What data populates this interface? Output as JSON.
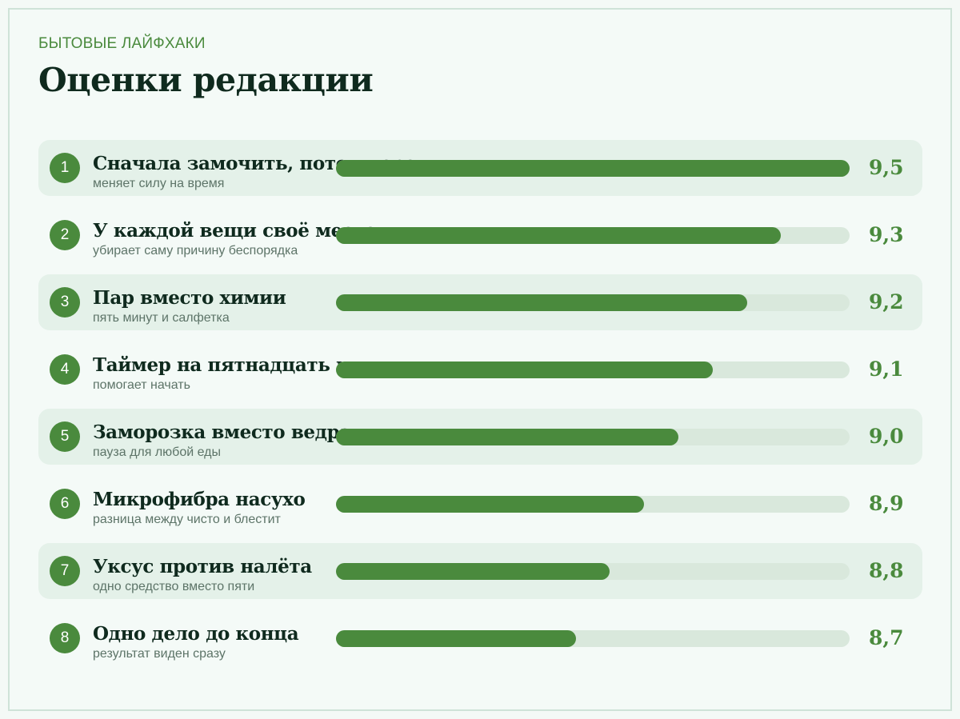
{
  "header": {
    "kicker": "БЫТОВЫЕ ЛАЙФХАКИ",
    "title": "Оценки редакции"
  },
  "chart_data": {
    "type": "bar",
    "orientation": "horizontal",
    "title": "Оценки редакции",
    "categories": [
      "Сначала замочить, потом тереть",
      "У каждой вещи своё место",
      "Пар вместо химии",
      "Таймер на пятнадцать минут",
      "Заморозка вместо ведра",
      "Микрофибра насухо",
      "Уксус против налёта",
      "Одно дело до конца"
    ],
    "values": [
      9.5,
      9.3,
      9.2,
      9.1,
      9.0,
      8.9,
      8.8,
      8.7
    ],
    "value_labels": [
      "9,5",
      "9,3",
      "9,2",
      "9,1",
      "9,0",
      "8,9",
      "8,8",
      "8,7"
    ],
    "scale_min": 8.0,
    "scale_max": 9.5,
    "grid": false,
    "colors": {
      "bar": "#4a8a3d",
      "track": "#d9e8dc",
      "row_shade": "#e4f1e9"
    },
    "items": [
      {
        "rank": "1",
        "name": "Сначала замочить, потом тереть",
        "sub": "меняет силу на время",
        "value": 9.5,
        "label": "9,5"
      },
      {
        "rank": "2",
        "name": "У каждой вещи своё место",
        "sub": "убирает саму причину беспорядка",
        "value": 9.3,
        "label": "9,3"
      },
      {
        "rank": "3",
        "name": "Пар вместо химии",
        "sub": "пять минут и салфетка",
        "value": 9.2,
        "label": "9,2"
      },
      {
        "rank": "4",
        "name": "Таймер на пятнадцать минут",
        "sub": "помогает начать",
        "value": 9.1,
        "label": "9,1"
      },
      {
        "rank": "5",
        "name": "Заморозка вместо ведра",
        "sub": "пауза для любой еды",
        "value": 9.0,
        "label": "9,0"
      },
      {
        "rank": "6",
        "name": "Микрофибра насухо",
        "sub": "разница между чисто и блестит",
        "value": 8.9,
        "label": "8,9"
      },
      {
        "rank": "7",
        "name": "Уксус против налёта",
        "sub": "одно средство вместо пяти",
        "value": 8.8,
        "label": "8,8"
      },
      {
        "rank": "8",
        "name": "Одно дело до конца",
        "sub": "результат виден сразу",
        "value": 8.7,
        "label": "8,7"
      }
    ]
  }
}
